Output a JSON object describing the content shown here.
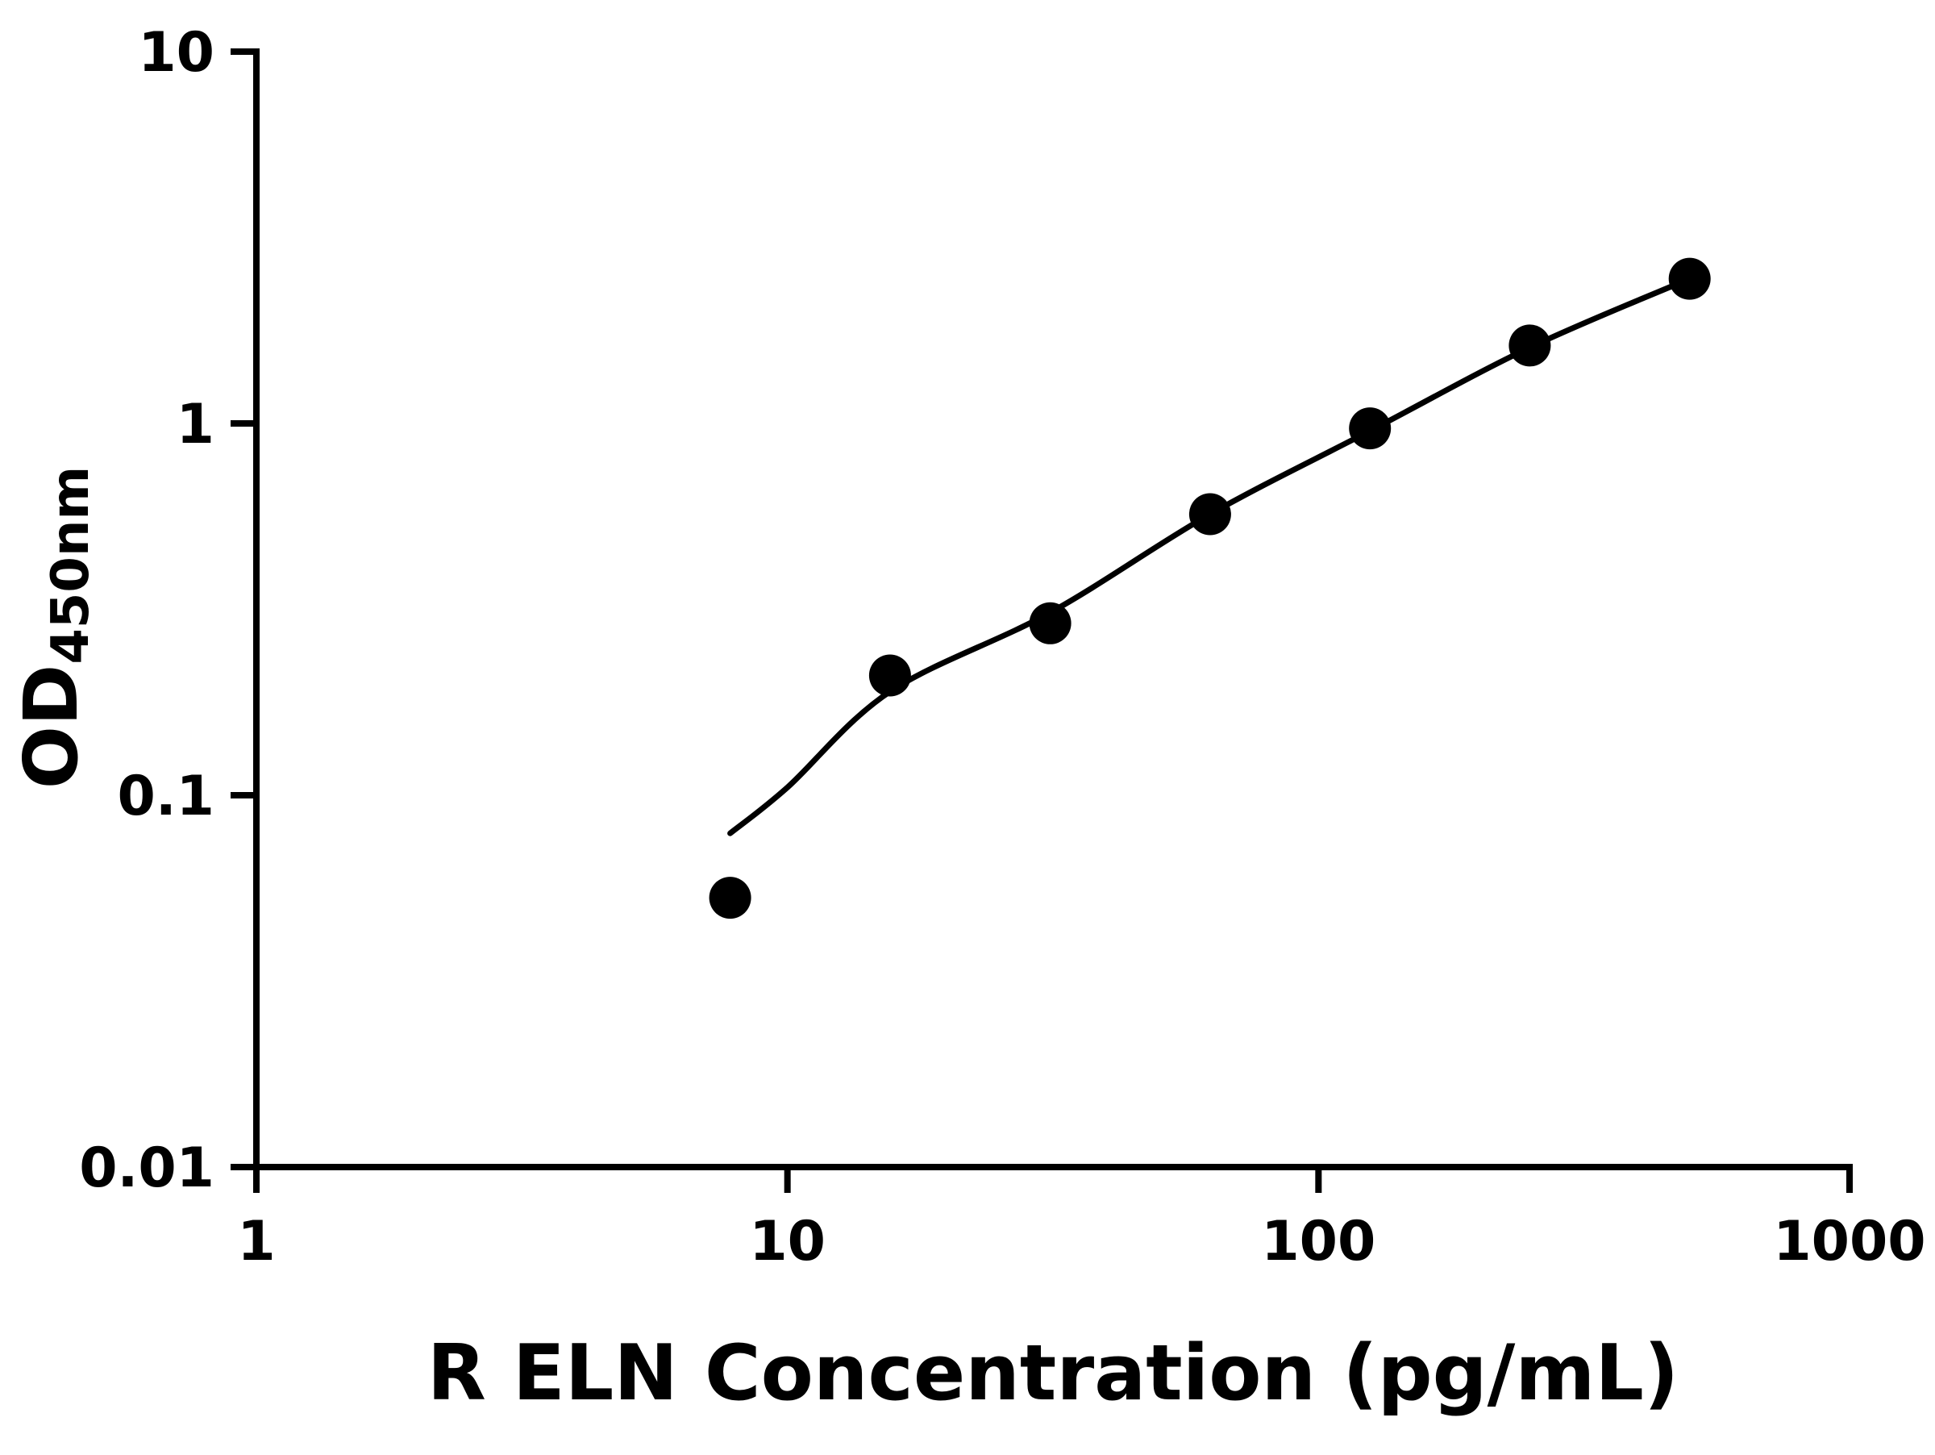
{
  "figure": {
    "background": "#ffffff"
  },
  "chart_data": {
    "type": "scatter",
    "title": "",
    "xlabel": "R ELN Concentration (pg/mL)",
    "ylabel": "OD450nm",
    "ylabel_main": "OD",
    "ylabel_sub": "450nm",
    "x_scale": "log",
    "y_scale": "log",
    "xlim": [
      1,
      1000
    ],
    "ylim": [
      0.01,
      10
    ],
    "x_ticks": [
      1,
      10,
      100,
      1000
    ],
    "x_tick_labels": [
      "1",
      "10",
      "100",
      "1000"
    ],
    "y_ticks": [
      0.01,
      0.1,
      1,
      10
    ],
    "y_tick_labels": [
      "0.01",
      "0.1",
      "1",
      "10"
    ],
    "grid": false,
    "legend_position": "none",
    "colors": {
      "marker": "#000000",
      "line": "#000000",
      "axis": "#000000"
    },
    "series": [
      {
        "name": "standard-points",
        "marker": "circle",
        "color": "#000000",
        "x": [
          7.8,
          15.6,
          31.25,
          62.5,
          125,
          250,
          500
        ],
        "y": [
          0.053,
          0.21,
          0.29,
          0.57,
          0.97,
          1.62,
          2.45
        ]
      }
    ],
    "fit_line": {
      "name": "fit-curve",
      "color": "#000000",
      "x": [
        7.8,
        10,
        15.6,
        31.25,
        62.5,
        125,
        250,
        500
      ],
      "y": [
        0.079,
        0.105,
        0.19,
        0.31,
        0.57,
        0.955,
        1.6,
        2.45
      ]
    }
  }
}
